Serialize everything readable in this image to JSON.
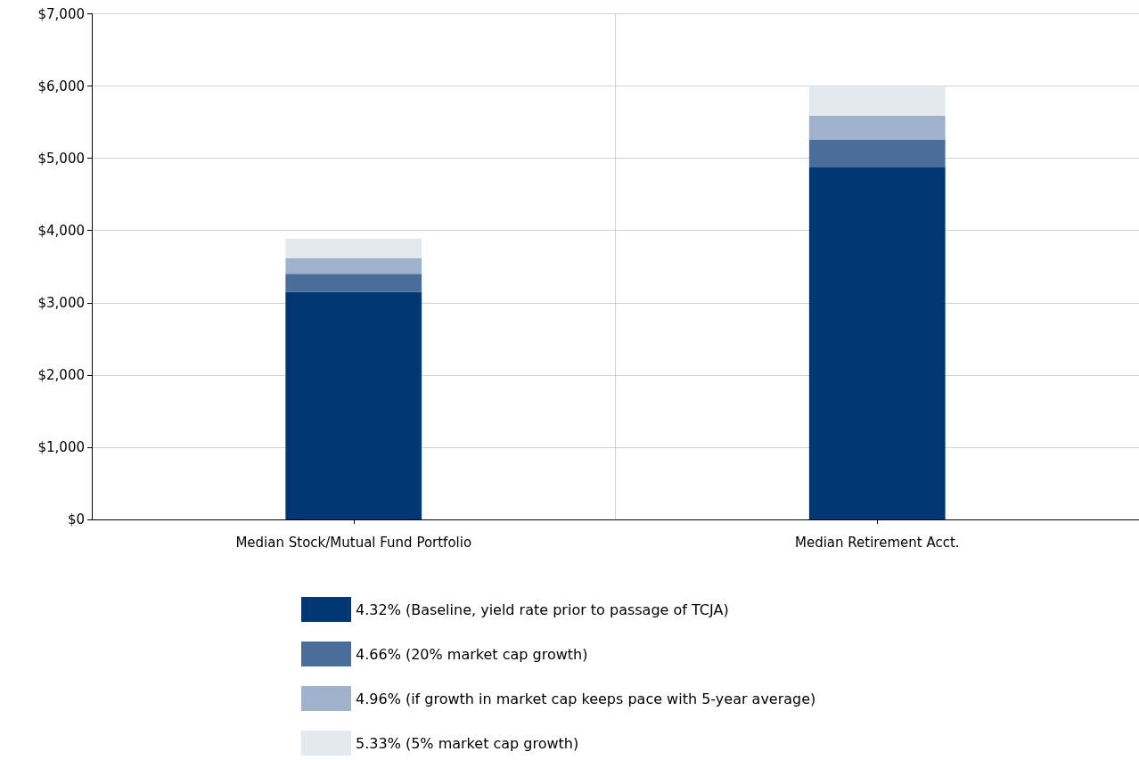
{
  "chart_data": {
    "type": "bar",
    "stacked": true,
    "categories": [
      "Median Stock/Mutual Fund Portfolio",
      "Median Retirement Acct."
    ],
    "series": [
      {
        "name": "4.32% (Baseline, yield rate prior to passage of TCJA)",
        "color": "#003671",
        "values": [
          3150,
          4880
        ]
      },
      {
        "name": "4.66% (20% market cap growth)",
        "color": "#4a6d9a",
        "values": [
          250,
          380
        ]
      },
      {
        "name": "4.96% (if growth in market cap keeps pace with 5-year average)",
        "color": "#a0b2cb",
        "values": [
          220,
          330
        ]
      },
      {
        "name": "5.33% (5% market cap growth)",
        "color": "#e3e9ef",
        "values": [
          270,
          410
        ]
      }
    ],
    "ylim": [
      0,
      7000
    ],
    "yticks": [
      {
        "value": 0,
        "label": "$0"
      },
      {
        "value": 1000,
        "label": "$1,000"
      },
      {
        "value": 2000,
        "label": "$2,000"
      },
      {
        "value": 3000,
        "label": "$3,000"
      },
      {
        "value": 4000,
        "label": "$4,000"
      },
      {
        "value": 5000,
        "label": "$5,000"
      },
      {
        "value": 6000,
        "label": "$6,000"
      },
      {
        "value": 7000,
        "label": "$7,000"
      }
    ],
    "grid": true,
    "legend": "bottom"
  }
}
